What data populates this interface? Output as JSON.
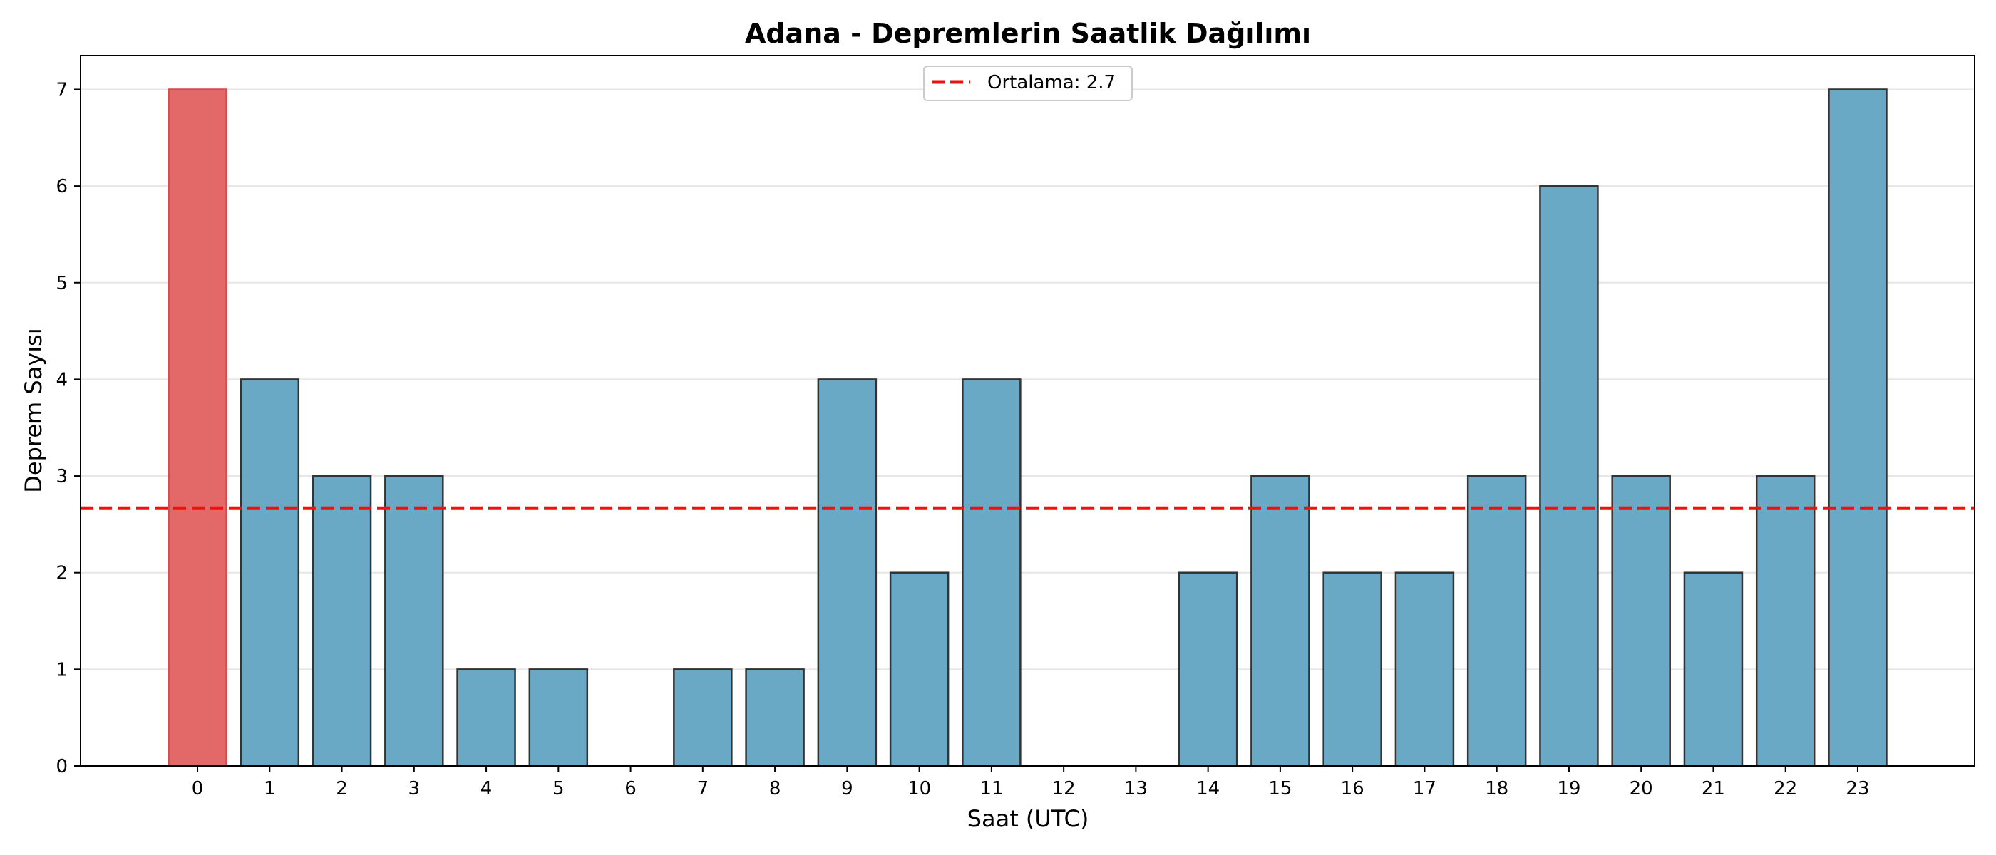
{
  "chart_data": {
    "type": "bar",
    "title": "Adana - Depremlerin Saatlik Dağılımı",
    "xlabel": "Saat (UTC)",
    "ylabel": "Deprem Sayısı",
    "categories": [
      "0",
      "1",
      "2",
      "3",
      "4",
      "5",
      "6",
      "7",
      "8",
      "9",
      "10",
      "11",
      "12",
      "13",
      "14",
      "15",
      "16",
      "17",
      "18",
      "19",
      "20",
      "21",
      "22",
      "23"
    ],
    "values": [
      7,
      4,
      3,
      3,
      1,
      1,
      0,
      1,
      1,
      4,
      2,
      4,
      0,
      0,
      2,
      3,
      2,
      2,
      3,
      6,
      3,
      2,
      3,
      7
    ],
    "highlighted_category": "0",
    "ylim": [
      0,
      7.35
    ],
    "yticks": [
      0,
      1,
      2,
      3,
      4,
      5,
      6,
      7
    ],
    "grid": "y",
    "reference_line": {
      "label": "Ortalama: 2.7",
      "value": 2.667,
      "style": "dashed"
    },
    "legend": {
      "placement": "top-center",
      "entries": [
        "Ortalama: 2.7"
      ]
    },
    "colors": {
      "bar": "#6aa9c5",
      "bar_highlight": "#e36868",
      "bar_edge": "#333333",
      "highlight_edge": "#d84b4b",
      "mean_line": "#ee1111",
      "grid": "#e6e6e6"
    }
  }
}
